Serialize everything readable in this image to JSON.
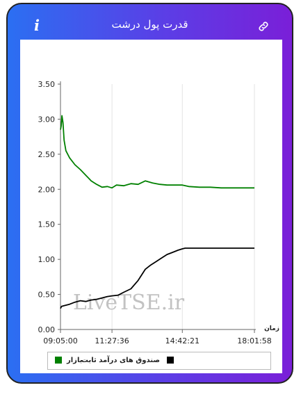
{
  "header": {
    "title": "قدرت پول درشت",
    "info_label": "i"
  },
  "chart_data": {
    "type": "line",
    "title": "قدرت پول درشت",
    "xlabel": "زمان",
    "ylabel": "",
    "x_ticks": [
      "09:05:00",
      "11:27:36",
      "14:42:21",
      "18:01:58"
    ],
    "y_ticks": [
      "0.00",
      "0.50",
      "1.00",
      "1.50",
      "2.00",
      "2.50",
      "3.00",
      "3.50"
    ],
    "ylim": [
      0,
      3.5
    ],
    "grid": "x-only",
    "legend_position": "bottom",
    "watermark": "LiveTSE.ir",
    "series": [
      {
        "name": "بازار",
        "color": "#008000",
        "x": [
          "09:05:00",
          "09:07:00",
          "09:09:00",
          "09:12:00",
          "09:15:00",
          "09:20:00",
          "09:30:00",
          "09:45:00",
          "10:00:00",
          "10:15:00",
          "10:30:00",
          "10:45:00",
          "11:00:00",
          "11:15:00",
          "11:27:36",
          "11:40:00",
          "12:00:00",
          "12:20:00",
          "12:40:00",
          "13:00:00",
          "13:20:00",
          "13:40:00",
          "14:00:00",
          "14:20:00",
          "14:42:21",
          "15:00:00",
          "15:30:00",
          "16:00:00",
          "16:30:00",
          "17:00:00",
          "17:30:00",
          "18:01:58"
        ],
        "values": [
          2.85,
          2.9,
          3.05,
          2.95,
          2.7,
          2.55,
          2.45,
          2.35,
          2.28,
          2.2,
          2.12,
          2.07,
          2.03,
          2.04,
          2.02,
          2.06,
          2.05,
          2.08,
          2.07,
          2.12,
          2.09,
          2.07,
          2.06,
          2.06,
          2.06,
          2.04,
          2.03,
          2.03,
          2.02,
          2.02,
          2.02,
          2.02
        ]
      },
      {
        "name": "صندوق های درآمد ثابت",
        "color": "#000000",
        "x": [
          "09:05:00",
          "09:08:00",
          "09:15:00",
          "09:30:00",
          "09:45:00",
          "10:00:00",
          "10:15:00",
          "10:30:00",
          "10:45:00",
          "11:00:00",
          "11:15:00",
          "11:27:36",
          "11:45:00",
          "12:00:00",
          "12:20:00",
          "12:40:00",
          "13:00:00",
          "13:15:00",
          "13:30:00",
          "13:45:00",
          "14:00:00",
          "14:15:00",
          "14:30:00",
          "14:42:21",
          "14:50:00",
          "15:00:00",
          "15:30:00",
          "16:00:00",
          "16:30:00",
          "17:00:00",
          "17:30:00",
          "18:01:58"
        ],
        "values": [
          0.3,
          0.33,
          0.34,
          0.36,
          0.39,
          0.41,
          0.4,
          0.42,
          0.43,
          0.45,
          0.47,
          0.48,
          0.49,
          0.53,
          0.58,
          0.7,
          0.86,
          0.92,
          0.97,
          1.02,
          1.07,
          1.1,
          1.13,
          1.15,
          1.16,
          1.16,
          1.16,
          1.16,
          1.16,
          1.16,
          1.16,
          1.16
        ]
      }
    ]
  }
}
